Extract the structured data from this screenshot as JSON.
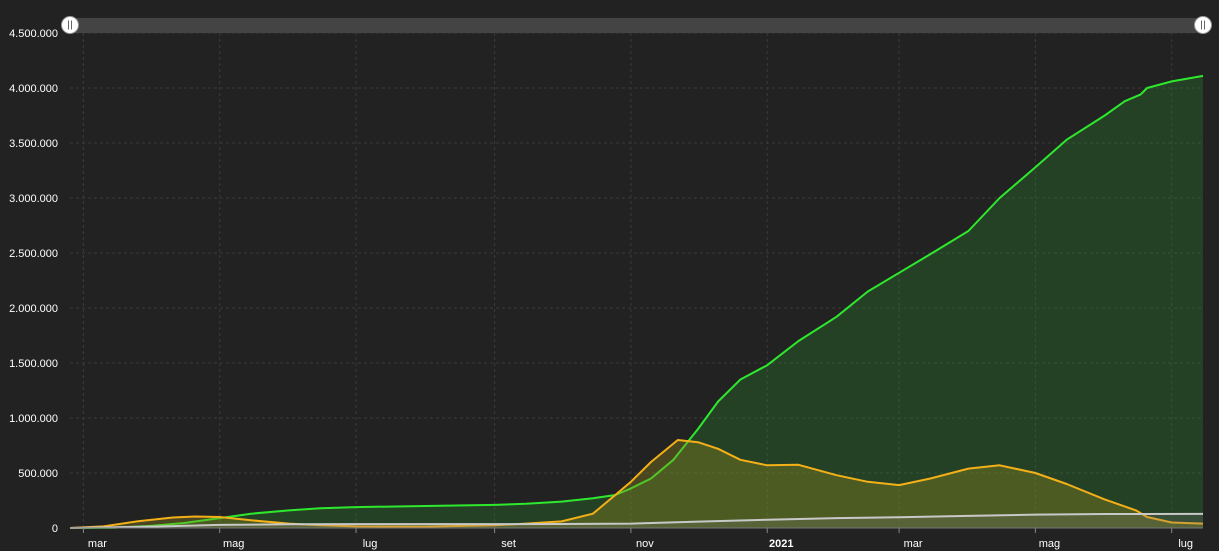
{
  "chart_data": {
    "type": "area",
    "title": "",
    "xlabel": "",
    "ylabel": "",
    "ylim": [
      0,
      4500000
    ],
    "xlim": [
      "2020-02-24",
      "2021-07-15"
    ],
    "grid": true,
    "legend": "none",
    "y_ticks": [
      {
        "value": 0,
        "label": "0"
      },
      {
        "value": 500000,
        "label": "500.000"
      },
      {
        "value": 1000000,
        "label": "1.000.000"
      },
      {
        "value": 1500000,
        "label": "1.500.000"
      },
      {
        "value": 2000000,
        "label": "2.000.000"
      },
      {
        "value": 2500000,
        "label": "2.500.000"
      },
      {
        "value": 3000000,
        "label": "3.000.000"
      },
      {
        "value": 3500000,
        "label": "3.500.000"
      },
      {
        "value": 4000000,
        "label": "4.000.000"
      },
      {
        "value": 4500000,
        "label": "4.500.000"
      }
    ],
    "x_ticks": [
      {
        "date": "2020-03-01",
        "label": "mar",
        "bold": false
      },
      {
        "date": "2020-05-01",
        "label": "mag",
        "bold": false
      },
      {
        "date": "2020-07-01",
        "label": "lug",
        "bold": false
      },
      {
        "date": "2020-09-01",
        "label": "set",
        "bold": false
      },
      {
        "date": "2020-11-01",
        "label": "nov",
        "bold": false
      },
      {
        "date": "2021-01-01",
        "label": "2021",
        "bold": true
      },
      {
        "date": "2021-03-01",
        "label": "mar",
        "bold": false
      },
      {
        "date": "2021-05-01",
        "label": "mag",
        "bold": false
      },
      {
        "date": "2021-07-01",
        "label": "lug",
        "bold": false
      }
    ],
    "series": [
      {
        "color": "#2ee82e",
        "fill": "rgba(46,160,46,0.25)",
        "points": [
          [
            "2020-02-24",
            0
          ],
          [
            "2020-03-15",
            3000
          ],
          [
            "2020-04-01",
            20000
          ],
          [
            "2020-04-15",
            45000
          ],
          [
            "2020-05-01",
            90000
          ],
          [
            "2020-05-15",
            130000
          ],
          [
            "2020-06-01",
            160000
          ],
          [
            "2020-06-15",
            180000
          ],
          [
            "2020-07-01",
            190000
          ],
          [
            "2020-08-01",
            200000
          ],
          [
            "2020-09-01",
            210000
          ],
          [
            "2020-09-15",
            220000
          ],
          [
            "2020-10-01",
            240000
          ],
          [
            "2020-10-15",
            270000
          ],
          [
            "2020-10-25",
            300000
          ],
          [
            "2020-11-01",
            360000
          ],
          [
            "2020-11-10",
            450000
          ],
          [
            "2020-11-20",
            620000
          ],
          [
            "2020-12-01",
            900000
          ],
          [
            "2020-12-10",
            1150000
          ],
          [
            "2020-12-20",
            1350000
          ],
          [
            "2021-01-01",
            1480000
          ],
          [
            "2021-01-15",
            1700000
          ],
          [
            "2021-02-01",
            1920000
          ],
          [
            "2021-02-15",
            2150000
          ],
          [
            "2021-03-01",
            2320000
          ],
          [
            "2021-03-15",
            2490000
          ],
          [
            "2021-04-01",
            2700000
          ],
          [
            "2021-04-15",
            3000000
          ],
          [
            "2021-05-01",
            3280000
          ],
          [
            "2021-05-15",
            3530000
          ],
          [
            "2021-06-01",
            3750000
          ],
          [
            "2021-06-10",
            3880000
          ],
          [
            "2021-06-17",
            3940000
          ],
          [
            "2021-06-20",
            4000000
          ],
          [
            "2021-07-01",
            4060000
          ],
          [
            "2021-07-15",
            4110000
          ]
        ]
      },
      {
        "color": "#f4b018",
        "fill": "rgba(150,140,30,0.35)",
        "points": [
          [
            "2020-02-24",
            0
          ],
          [
            "2020-03-10",
            15000
          ],
          [
            "2020-03-25",
            60000
          ],
          [
            "2020-04-10",
            95000
          ],
          [
            "2020-04-20",
            105000
          ],
          [
            "2020-05-01",
            100000
          ],
          [
            "2020-05-15",
            70000
          ],
          [
            "2020-06-01",
            40000
          ],
          [
            "2020-06-15",
            25000
          ],
          [
            "2020-07-01",
            15000
          ],
          [
            "2020-08-01",
            13000
          ],
          [
            "2020-09-01",
            25000
          ],
          [
            "2020-09-15",
            40000
          ],
          [
            "2020-10-01",
            60000
          ],
          [
            "2020-10-15",
            130000
          ],
          [
            "2020-10-25",
            300000
          ],
          [
            "2020-11-01",
            420000
          ],
          [
            "2020-11-10",
            600000
          ],
          [
            "2020-11-22",
            800000
          ],
          [
            "2020-12-01",
            780000
          ],
          [
            "2020-12-10",
            720000
          ],
          [
            "2020-12-20",
            620000
          ],
          [
            "2021-01-01",
            570000
          ],
          [
            "2021-01-15",
            575000
          ],
          [
            "2021-02-01",
            480000
          ],
          [
            "2021-02-15",
            420000
          ],
          [
            "2021-03-01",
            390000
          ],
          [
            "2021-03-15",
            450000
          ],
          [
            "2021-04-01",
            540000
          ],
          [
            "2021-04-15",
            570000
          ],
          [
            "2021-05-01",
            500000
          ],
          [
            "2021-05-15",
            400000
          ],
          [
            "2021-06-01",
            260000
          ],
          [
            "2021-06-15",
            160000
          ],
          [
            "2021-06-20",
            100000
          ],
          [
            "2021-07-01",
            50000
          ],
          [
            "2021-07-15",
            40000
          ]
        ]
      },
      {
        "color": "#c8c8c8",
        "fill": "rgba(120,120,120,0.25)",
        "points": [
          [
            "2020-02-24",
            0
          ],
          [
            "2020-04-01",
            13000
          ],
          [
            "2020-05-01",
            28000
          ],
          [
            "2020-06-01",
            34000
          ],
          [
            "2020-07-01",
            35000
          ],
          [
            "2020-09-01",
            35500
          ],
          [
            "2020-10-01",
            36500
          ],
          [
            "2020-11-01",
            40000
          ],
          [
            "2020-12-01",
            58000
          ],
          [
            "2021-01-01",
            75000
          ],
          [
            "2021-02-01",
            90000
          ],
          [
            "2021-03-01",
            98000
          ],
          [
            "2021-04-01",
            110000
          ],
          [
            "2021-05-01",
            122000
          ],
          [
            "2021-06-01",
            127000
          ],
          [
            "2021-07-15",
            128000
          ]
        ]
      }
    ]
  }
}
